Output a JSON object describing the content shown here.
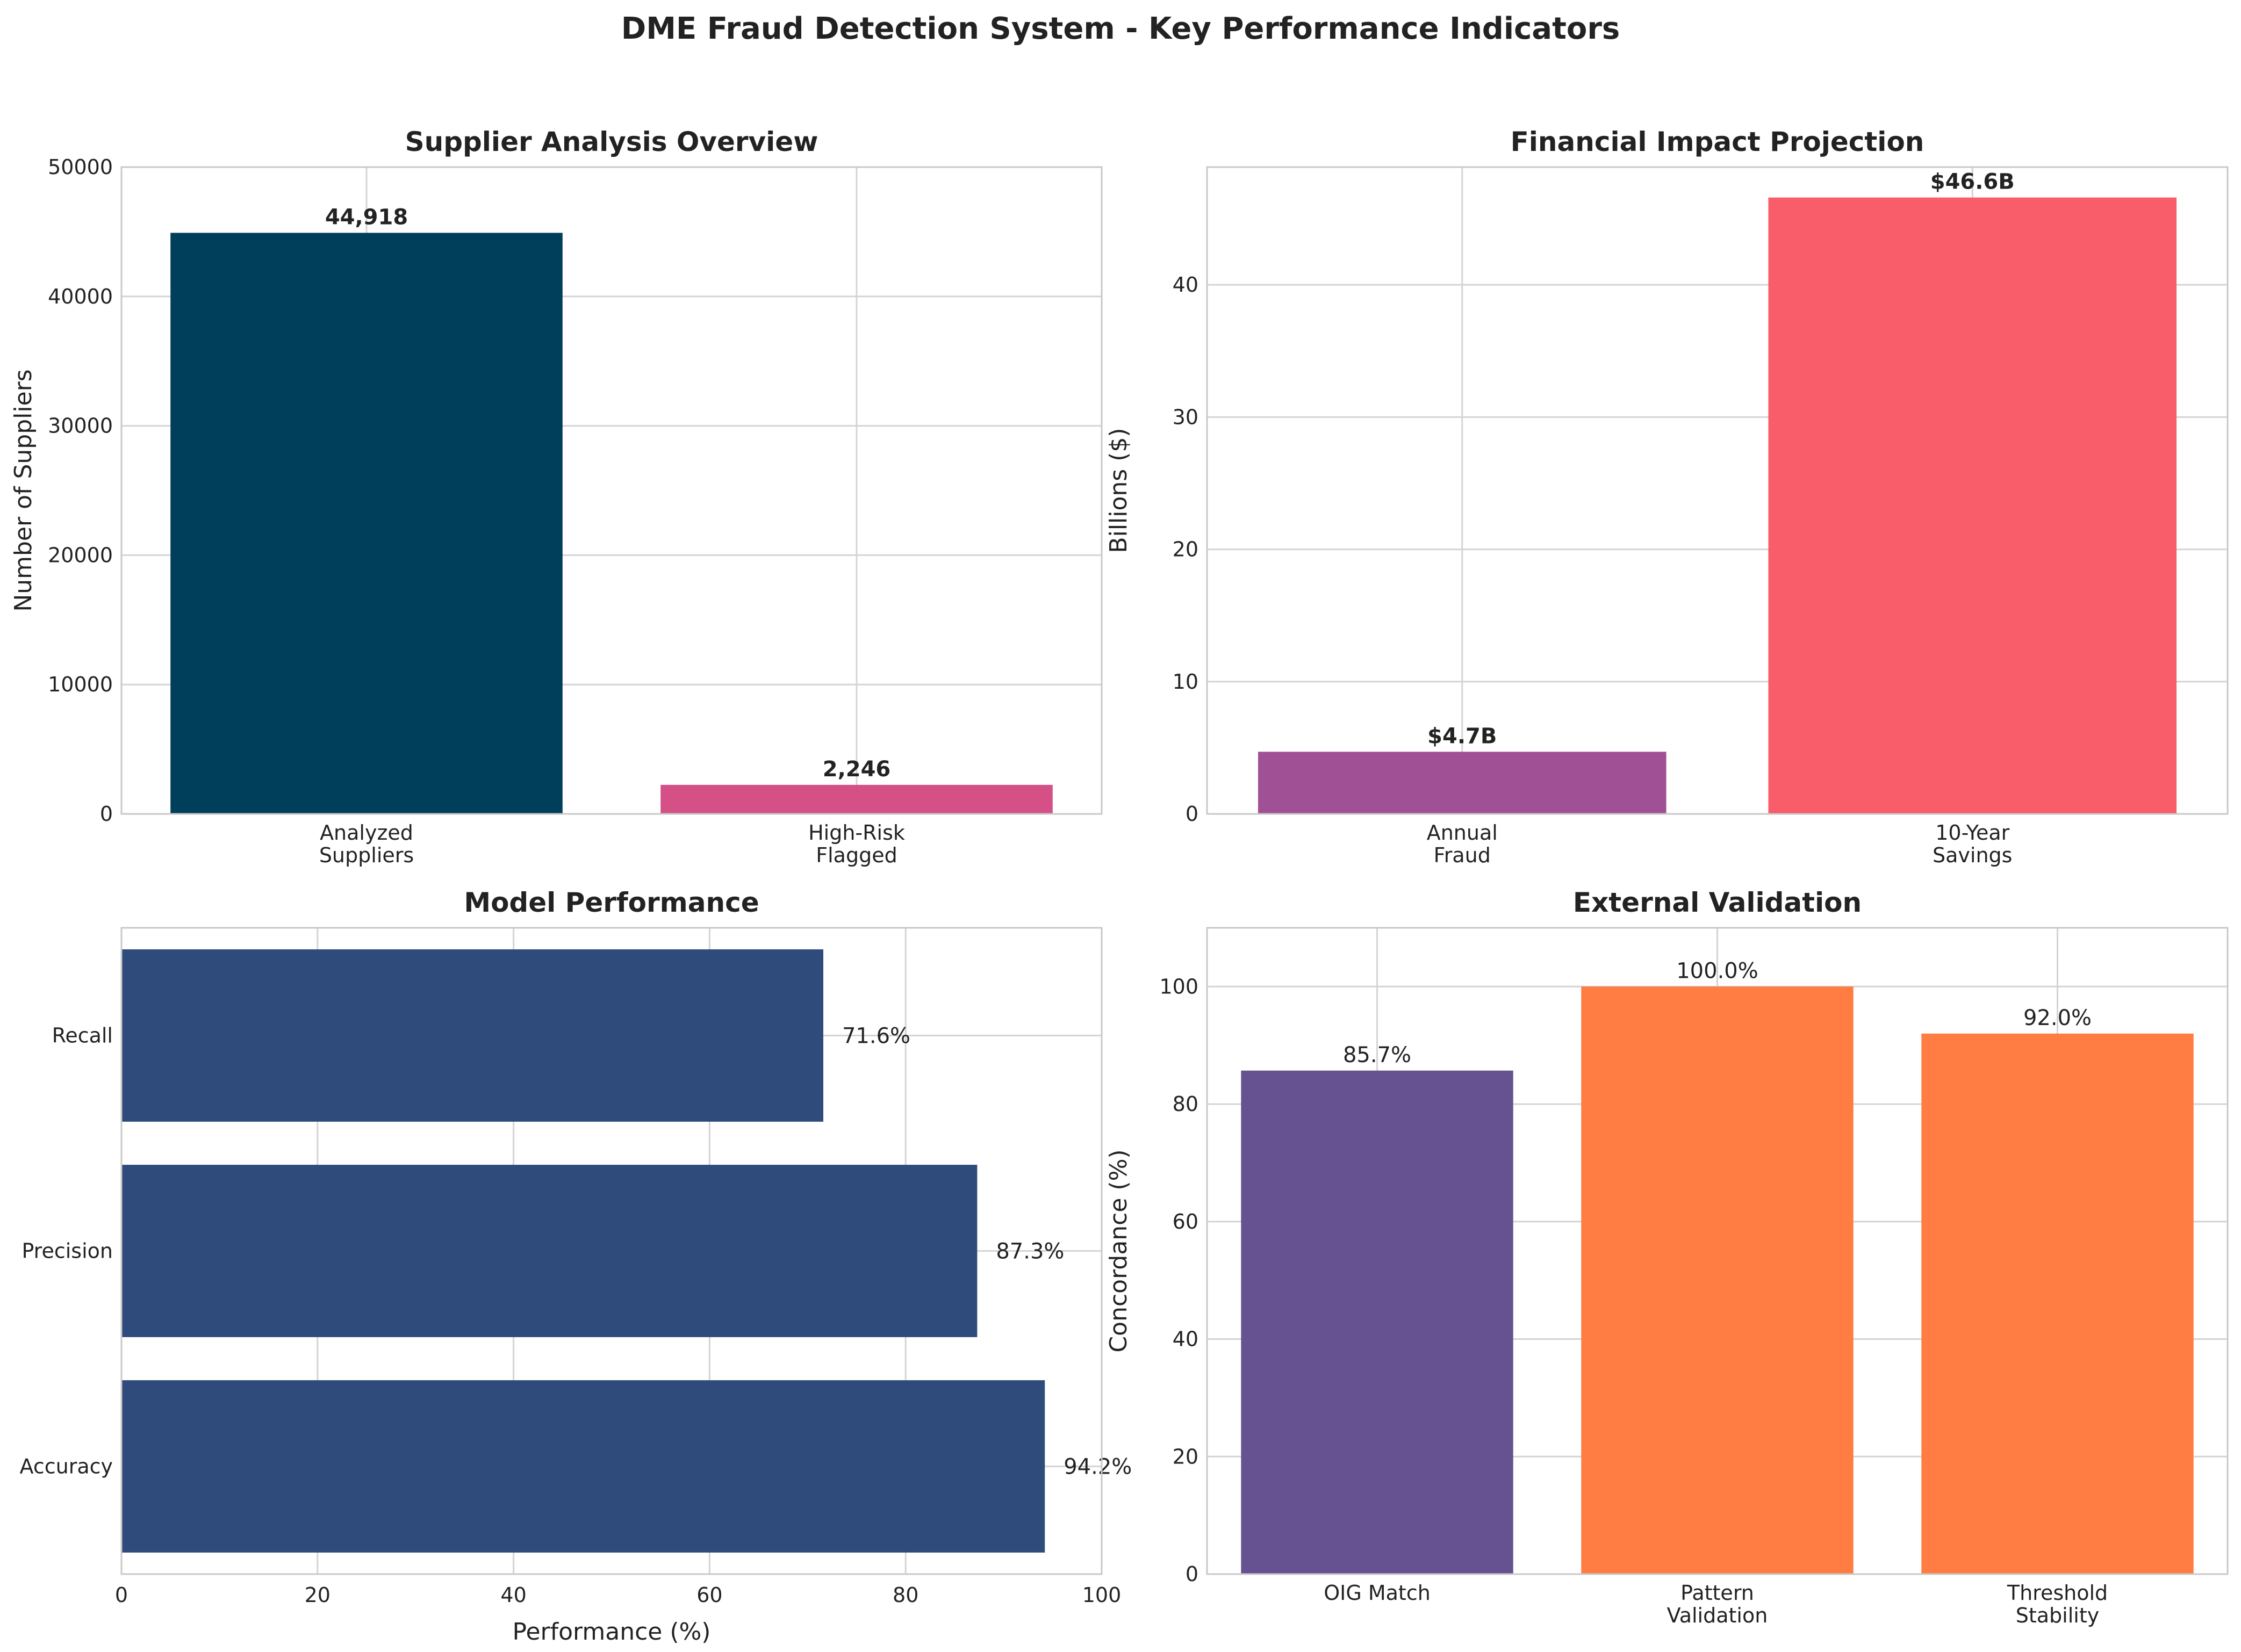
{
  "figure": {
    "title": "DME Fraud Detection System - Key Performance Indicators"
  },
  "chart_data": [
    {
      "type": "bar",
      "title": "Supplier Analysis Overview",
      "categories": [
        "Analyzed\nSuppliers",
        "High-Risk\nFlagged"
      ],
      "values": [
        44918,
        2246
      ],
      "data_labels": [
        "44,918",
        "2,246"
      ],
      "colors": [
        "#003f5c",
        "#d45087"
      ],
      "xlabel": "",
      "ylabel": "Number of Suppliers",
      "ylim": [
        0,
        50000
      ],
      "yticks": [
        0,
        10000,
        20000,
        30000,
        40000,
        50000
      ],
      "grid": true,
      "label_bold": true
    },
    {
      "type": "bar",
      "title": "Financial Impact Projection",
      "categories": [
        "Annual\nFraud",
        "10-Year\nSavings"
      ],
      "values": [
        4.7,
        46.6
      ],
      "data_labels": [
        "$4.7B",
        "$46.6B"
      ],
      "colors": [
        "#a05195",
        "#f95d6a"
      ],
      "xlabel": "",
      "ylabel": "Billions ($)",
      "ylim": [
        0,
        48.9
      ],
      "yticks": [
        0,
        10,
        20,
        30,
        40
      ],
      "grid": true,
      "label_bold": true
    },
    {
      "type": "bar",
      "orientation": "horizontal",
      "title": "Model Performance",
      "categories": [
        "Accuracy",
        "Precision",
        "Recall"
      ],
      "values": [
        94.2,
        87.3,
        71.6
      ],
      "data_labels": [
        "94.2%",
        "87.3%",
        "71.6%"
      ],
      "colors": [
        "#2f4b7c",
        "#2f4b7c",
        "#2f4b7c"
      ],
      "xlabel": "Performance (%)",
      "ylabel": "",
      "xlim": [
        0,
        100
      ],
      "xticks": [
        0,
        20,
        40,
        60,
        80,
        100
      ],
      "grid": true,
      "label_bold": false
    },
    {
      "type": "bar",
      "title": "External Validation",
      "categories": [
        "OIG Match",
        "Pattern\nValidation",
        "Threshold\nStability"
      ],
      "values": [
        85.7,
        100.0,
        92.0
      ],
      "data_labels": [
        "85.7%",
        "100.0%",
        "92.0%"
      ],
      "colors": [
        "#665191",
        "#ff7c43",
        "#ff7c43"
      ],
      "xlabel": "",
      "ylabel": "Concordance (%)",
      "ylim": [
        0,
        110
      ],
      "yticks": [
        0,
        20,
        40,
        60,
        80,
        100
      ],
      "grid": true,
      "label_bold": false
    }
  ]
}
